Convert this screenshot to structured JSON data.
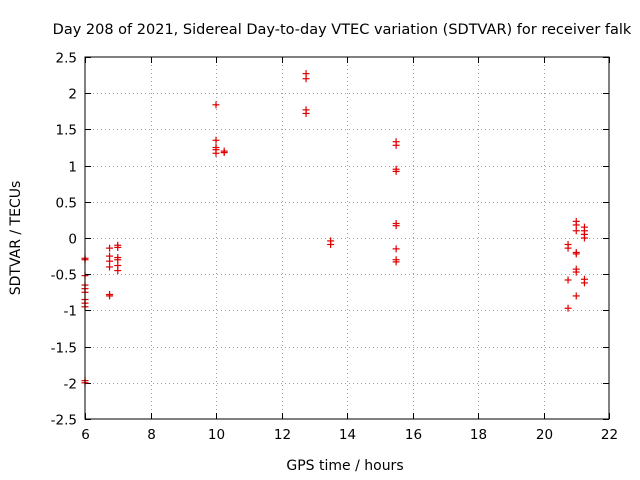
{
  "chart_data": {
    "type": "scatter",
    "title": "Day 208 of 2021, Sidereal Day-to-day VTEC variation (SDTVAR) for receiver falk",
    "xlabel": "GPS time / hours",
    "ylabel": "SDTVAR / TECUs",
    "xlim": [
      6,
      22
    ],
    "ylim": [
      -2.5,
      2.5
    ],
    "xticks": [
      6,
      8,
      10,
      12,
      14,
      16,
      18,
      20,
      22
    ],
    "yticks": [
      -2.5,
      -2,
      -1.5,
      -1,
      -0.5,
      0,
      0.5,
      1,
      1.5,
      2,
      2.5
    ],
    "xtick_labels": [
      "6",
      "8",
      "10",
      "12",
      "14",
      "16",
      "18",
      "20",
      "22"
    ],
    "ytick_labels": [
      "-2.5",
      "-2",
      "-1.5",
      "-1",
      "-0.5",
      "0",
      "0.5",
      "1",
      "1.5",
      "2",
      "2.5"
    ],
    "grid": true,
    "marker": "+",
    "series": [
      {
        "name": "SDTVAR",
        "color": "#e00000",
        "points": [
          [
            6.0,
            -0.28
          ],
          [
            6.0,
            -0.3
          ],
          [
            6.0,
            -0.52
          ],
          [
            6.0,
            -0.65
          ],
          [
            6.0,
            -0.7
          ],
          [
            6.0,
            -0.75
          ],
          [
            6.0,
            -0.85
          ],
          [
            6.0,
            -0.9
          ],
          [
            6.0,
            -0.95
          ],
          [
            6.0,
            -1.97
          ],
          [
            6.0,
            -2.0
          ],
          [
            6.75,
            -0.14
          ],
          [
            6.75,
            -0.25
          ],
          [
            6.75,
            -0.32
          ],
          [
            6.75,
            -0.4
          ],
          [
            6.75,
            -0.78
          ],
          [
            6.75,
            -0.8
          ],
          [
            7.0,
            -0.1
          ],
          [
            7.0,
            -0.13
          ],
          [
            7.0,
            -0.27
          ],
          [
            7.0,
            -0.3
          ],
          [
            7.0,
            -0.38
          ],
          [
            7.0,
            -0.45
          ],
          [
            10.0,
            1.84
          ],
          [
            10.0,
            1.35
          ],
          [
            10.0,
            1.25
          ],
          [
            10.0,
            1.22
          ],
          [
            10.0,
            1.17
          ],
          [
            10.25,
            1.2
          ],
          [
            10.25,
            1.18
          ],
          [
            12.75,
            2.27
          ],
          [
            12.75,
            2.2
          ],
          [
            12.75,
            1.77
          ],
          [
            12.75,
            1.72
          ],
          [
            13.5,
            -0.04
          ],
          [
            13.5,
            -0.09
          ],
          [
            15.5,
            1.33
          ],
          [
            15.5,
            1.28
          ],
          [
            15.5,
            0.95
          ],
          [
            15.5,
            0.92
          ],
          [
            15.5,
            0.2
          ],
          [
            15.5,
            0.17
          ],
          [
            15.5,
            -0.15
          ],
          [
            15.5,
            -0.3
          ],
          [
            15.5,
            -0.33
          ],
          [
            20.75,
            -0.09
          ],
          [
            20.75,
            -0.14
          ],
          [
            20.75,
            -0.58
          ],
          [
            20.75,
            -0.97
          ],
          [
            21.0,
            0.23
          ],
          [
            21.0,
            0.18
          ],
          [
            21.0,
            0.1
          ],
          [
            21.0,
            -0.2
          ],
          [
            21.0,
            -0.22
          ],
          [
            21.0,
            -0.43
          ],
          [
            21.0,
            -0.47
          ],
          [
            21.0,
            -0.8
          ],
          [
            21.25,
            0.15
          ],
          [
            21.25,
            0.1
          ],
          [
            21.25,
            0.05
          ],
          [
            21.25,
            0.0
          ],
          [
            21.25,
            -0.57
          ],
          [
            21.25,
            -0.62
          ]
        ]
      }
    ]
  }
}
